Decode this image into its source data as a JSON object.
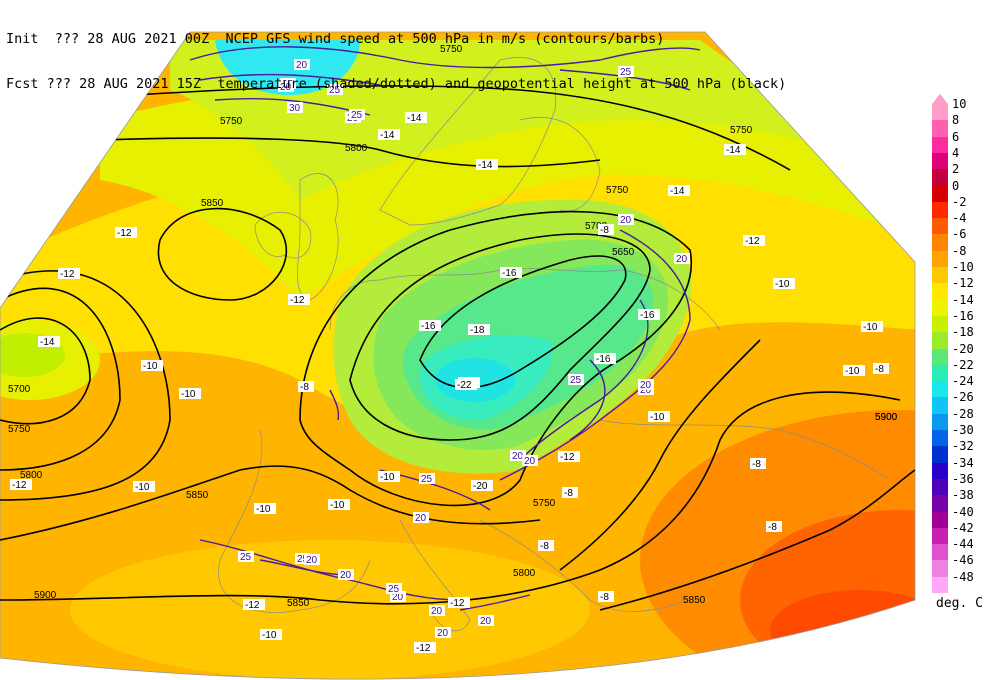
{
  "header": {
    "init_line": "Init  ??? 28 AUG 2021 00Z  NCEP GFS wind speed at 500 hPa in m/s (contours/barbs)",
    "fcst_line": "Fcst ??? 28 AUG 2021 15Z  temperature (shaded/dotted) and geopotential height at 500 hPa (black)"
  },
  "legend": {
    "unit": "deg. C",
    "levels": [
      "10",
      "8",
      "6",
      "4",
      "2",
      "0",
      "-2",
      "-4",
      "-6",
      "-8",
      "-10",
      "-12",
      "-14",
      "-16",
      "-18",
      "-20",
      "-22",
      "-24",
      "-26",
      "-28",
      "-30",
      "-32",
      "-34",
      "-36",
      "-38",
      "-40",
      "-42",
      "-44",
      "-46",
      "-48"
    ],
    "colors": [
      "#ff9ec8",
      "#ff5fb0",
      "#ff2aa0",
      "#e0007a",
      "#c4003c",
      "#d40000",
      "#ff2a00",
      "#ff5a00",
      "#ff8400",
      "#ffa400",
      "#ffc800",
      "#ffe800",
      "#ecf500",
      "#c8f000",
      "#9ceb28",
      "#5ae878",
      "#2cecb4",
      "#18e8ec",
      "#10c4f4",
      "#0898f0",
      "#0064e8",
      "#0030d0",
      "#2800c8",
      "#5000b8",
      "#7800a8",
      "#a00098",
      "#c820b0",
      "#e050d0",
      "#f080e4",
      "#ffa8f8"
    ]
  },
  "height_labels": [
    "5750",
    "5750",
    "5750",
    "5800",
    "5750",
    "5850",
    "5700",
    "5650",
    "5700",
    "5750",
    "5800",
    "5850",
    "5900",
    "5750",
    "5800",
    "5850",
    "5900",
    "5850",
    "5900"
  ],
  "temp_labels": [
    "-14",
    "-14",
    "-14",
    "-14",
    "-12",
    "-12",
    "-12",
    "-10",
    "-12",
    "-16",
    "-16",
    "-18",
    "-20",
    "-22",
    "-16",
    "-16",
    "-10",
    "-10",
    "-8",
    "-8",
    "-10",
    "-10",
    "-8",
    "-8",
    "-8",
    "-10",
    "-12",
    "-10",
    "-20",
    "-12",
    "-14",
    "-10",
    "-10",
    "-12",
    "-10",
    "-8",
    "-14",
    "-8",
    "-12",
    "-10",
    "-8",
    "-12"
  ],
  "wind_labels": [
    "20",
    "25",
    "30",
    "25",
    "20",
    "25",
    "20",
    "20",
    "20",
    "25",
    "20",
    "20",
    "25",
    "20",
    "25",
    "20",
    "20",
    "20",
    "20",
    "25",
    "20",
    "25",
    "20",
    "25",
    "20",
    "20"
  ]
}
